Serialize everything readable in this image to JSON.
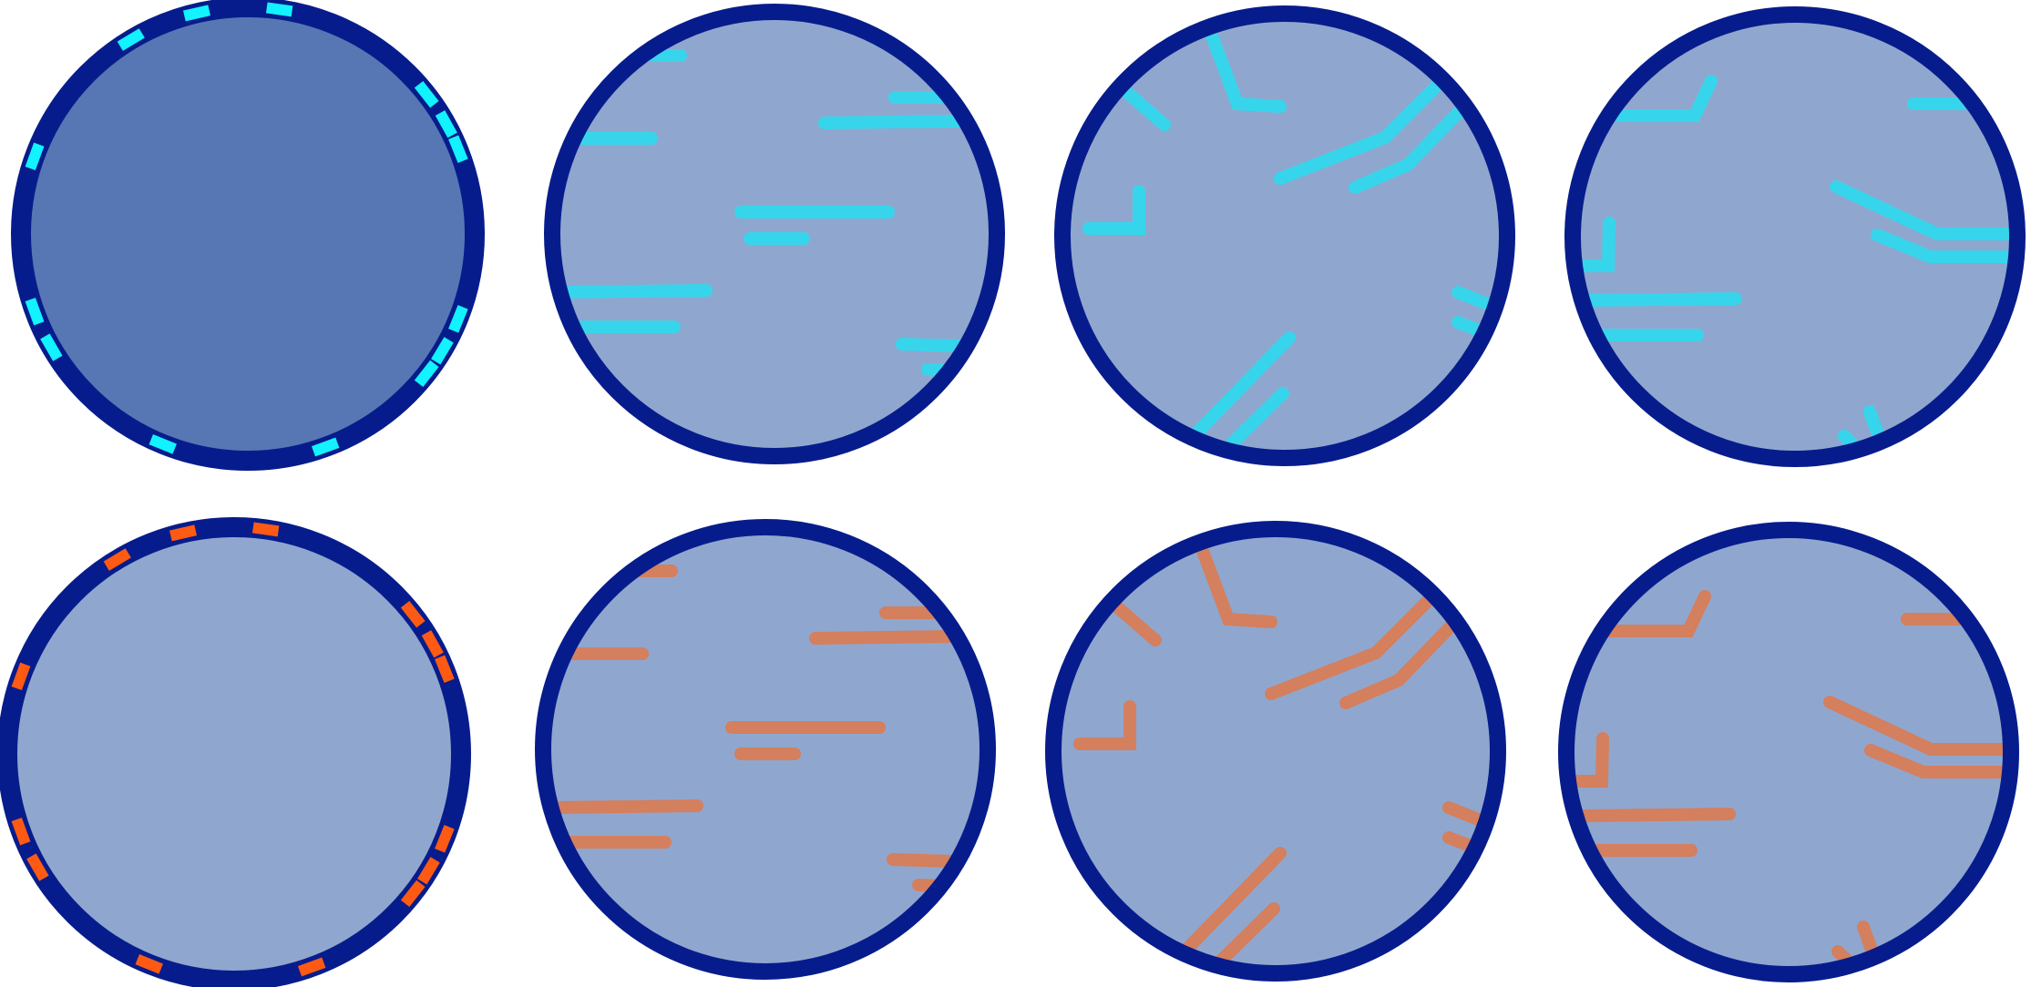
{
  "colors": {
    "ring": "#071C8C",
    "fill_dark": "#5677B3",
    "fill_light": "#8FA7CE",
    "cyan": "#12F2FF",
    "cyan_segment": "#37D5EC",
    "orange": "#FF5A14",
    "orange_segment": "#D47F5E",
    "background": "#FFFFFF"
  },
  "rows": [
    {
      "name": "cyan-row",
      "accent": "cyan",
      "panels": [
        {
          "kind": "ring-ticks",
          "fill": "fill_dark"
        },
        {
          "kind": "straight-segments",
          "fill": "fill_light"
        },
        {
          "kind": "angled-segments",
          "fill": "fill_light"
        },
        {
          "kind": "bent-segments",
          "fill": "fill_light"
        }
      ]
    },
    {
      "name": "orange-row",
      "accent": "orange",
      "panels": [
        {
          "kind": "ring-ticks",
          "fill": "fill_light"
        },
        {
          "kind": "straight-segments",
          "fill": "fill_light"
        },
        {
          "kind": "angled-segments",
          "fill": "fill_light"
        },
        {
          "kind": "bent-segments",
          "fill": "fill_light"
        }
      ]
    }
  ]
}
